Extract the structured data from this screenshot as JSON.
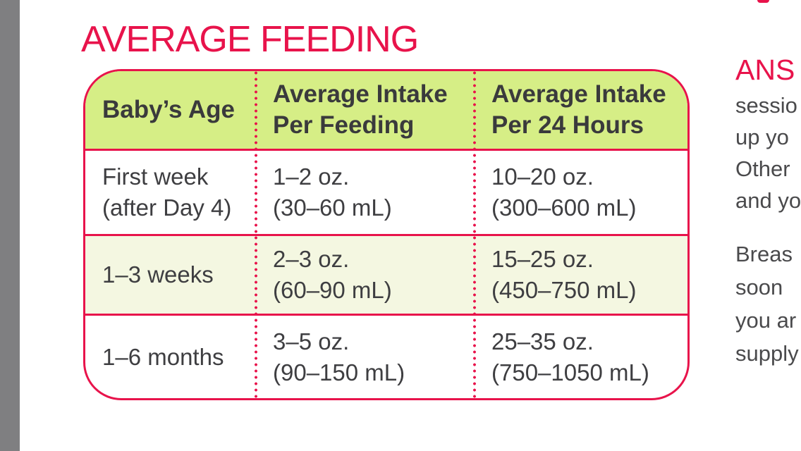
{
  "title": "AVERAGE FEEDING",
  "colors": {
    "accent_red": "#e8134b",
    "header_green": "#d6ee86",
    "alt_row_cream": "#f4f7e1",
    "body_text": "#3e3e41",
    "gutter_gray": "#7f7f81"
  },
  "table": {
    "headers": {
      "age": [
        "Baby’s Age"
      ],
      "per_feeding": [
        "Average Intake",
        "Per Feeding"
      ],
      "per_24_hours": [
        "Average Intake",
        "Per 24 Hours"
      ]
    },
    "rows": [
      {
        "age": [
          "First week",
          "(after Day 4)"
        ],
        "per_feeding": [
          "1–2 oz.",
          "(30–60 mL)"
        ],
        "per_24_hours": [
          "10–20 oz.",
          "(300–600 mL)"
        ]
      },
      {
        "age": [
          "1–3 weeks"
        ],
        "per_feeding": [
          "2–3 oz.",
          "(60–90 mL)"
        ],
        "per_24_hours": [
          "15–25 oz.",
          "(450–750 mL)"
        ]
      },
      {
        "age": [
          "1–6 months"
        ],
        "per_feeding": [
          "3–5 oz.",
          "(90–150 mL)"
        ],
        "per_24_hours": [
          "25–35 oz.",
          "(750–1050 mL)"
        ]
      }
    ]
  },
  "right_column": {
    "heading_fragment": "ANS",
    "para1_lines": [
      "sessio",
      "up yo",
      "Other",
      "and yo"
    ],
    "para2_lines": [
      "Breas",
      "soon",
      "you ar",
      "supply"
    ]
  }
}
